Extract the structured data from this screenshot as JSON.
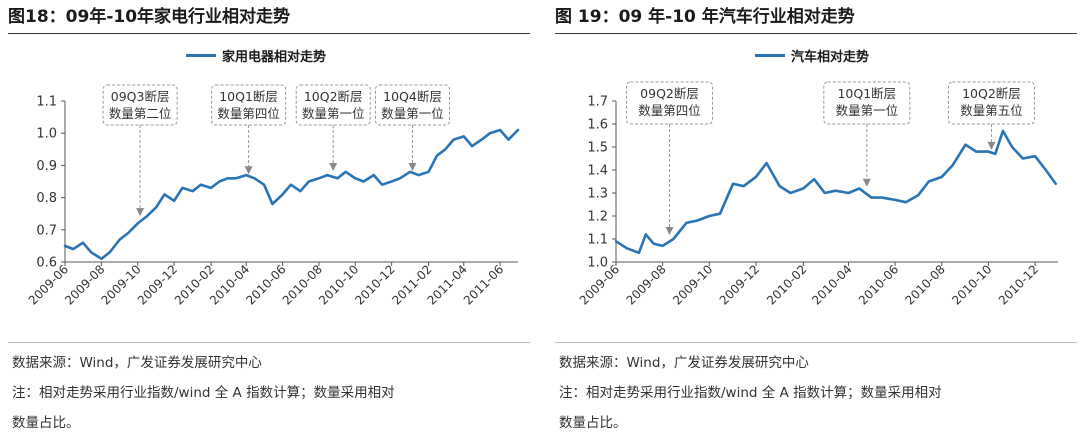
{
  "figures": [
    {
      "title": "图18：09年-10年家电行业相对走势",
      "source": "数据来源：Wind，广发证券发展研究中心",
      "note_line1": "注：相对走势采用行业指数/wind 全 A 指数计算；数量采用相对",
      "note_line2": "数量占比。"
    },
    {
      "title": "图 19：09 年-10 年汽车行业相对走势",
      "source": "数据来源：Wind，广发证券发展研究中心",
      "note_line1": "注：相对走势采用行业指数/wind 全 A 指数计算；数量采用相对",
      "note_line2": "数量占比。"
    }
  ],
  "chart_data": [
    {
      "type": "line",
      "series": [
        {
          "name": "家用电器相对走势",
          "color": "#2874b5",
          "x": [
            "2009-06-01",
            "2009-06-15",
            "2009-07-01",
            "2009-07-15",
            "2009-08-01",
            "2009-08-15",
            "2009-09-01",
            "2009-09-15",
            "2009-10-01",
            "2009-10-15",
            "2009-11-01",
            "2009-11-15",
            "2009-12-01",
            "2009-12-15",
            "2010-01-01",
            "2010-01-15",
            "2010-02-01",
            "2010-02-15",
            "2010-03-01",
            "2010-03-15",
            "2010-04-01",
            "2010-04-15",
            "2010-05-01",
            "2010-05-15",
            "2010-06-01",
            "2010-06-15",
            "2010-07-01",
            "2010-07-15",
            "2010-08-01",
            "2010-08-15",
            "2010-09-01",
            "2010-09-15",
            "2010-10-01",
            "2010-10-15",
            "2010-11-01",
            "2010-11-15",
            "2010-12-01",
            "2010-12-15",
            "2011-01-01",
            "2011-01-15",
            "2011-02-01",
            "2011-02-15",
            "2011-03-01",
            "2011-03-15",
            "2011-04-01",
            "2011-04-15",
            "2011-05-01",
            "2011-05-15",
            "2011-06-01",
            "2011-06-15",
            "2011-07-01"
          ],
          "values": [
            0.65,
            0.64,
            0.66,
            0.63,
            0.61,
            0.63,
            0.67,
            0.69,
            0.72,
            0.74,
            0.77,
            0.81,
            0.79,
            0.83,
            0.82,
            0.84,
            0.83,
            0.85,
            0.86,
            0.86,
            0.87,
            0.86,
            0.84,
            0.78,
            0.81,
            0.84,
            0.82,
            0.85,
            0.86,
            0.87,
            0.86,
            0.88,
            0.86,
            0.85,
            0.87,
            0.84,
            0.85,
            0.86,
            0.88,
            0.87,
            0.88,
            0.93,
            0.95,
            0.98,
            0.99,
            0.96,
            0.98,
            1.0,
            1.01,
            0.98,
            1.01
          ]
        }
      ],
      "ylim": [
        0.6,
        1.1
      ],
      "yticks": [
        0.6,
        0.7,
        0.8,
        0.9,
        1.0,
        1.1
      ],
      "ytick_labels": [
        "0.6",
        "0.7",
        "0.8",
        "0.9",
        "1.0",
        "1.1"
      ],
      "xticks": [
        "2009-06",
        "2009-08",
        "2009-10",
        "2009-12",
        "2010-02",
        "2010-04",
        "2010-06",
        "2010-08",
        "2010-10",
        "2010-12",
        "2011-02",
        "2011-04",
        "2011-06"
      ],
      "xlim": [
        "2009-06-01",
        "2011-07-01"
      ],
      "annotations": [
        {
          "line1": "09Q3断层",
          "line2": "数量第二位",
          "x": "2009-10-05",
          "y": 0.73
        },
        {
          "line1": "10Q1断层",
          "line2": "数量第四位",
          "x": "2010-04-05",
          "y": 0.86
        },
        {
          "line1": "10Q2断层",
          "line2": "数量第一位",
          "x": "2010-08-25",
          "y": 0.87
        },
        {
          "line1": "10Q4断层",
          "line2": "数量第一位",
          "x": "2011-01-05",
          "y": 0.87
        }
      ],
      "legend": "top-center",
      "grid": false
    },
    {
      "type": "line",
      "series": [
        {
          "name": "汽车相对走势",
          "color": "#2874b5",
          "x": [
            "2009-06-01",
            "2009-06-15",
            "2009-07-01",
            "2009-07-10",
            "2009-07-20",
            "2009-08-01",
            "2009-08-15",
            "2009-09-01",
            "2009-09-15",
            "2009-10-01",
            "2009-10-15",
            "2009-11-01",
            "2009-11-15",
            "2009-12-01",
            "2009-12-15",
            "2010-01-01",
            "2010-01-15",
            "2010-02-01",
            "2010-02-15",
            "2010-03-01",
            "2010-03-15",
            "2010-04-01",
            "2010-04-15",
            "2010-05-01",
            "2010-05-15",
            "2010-06-01",
            "2010-06-15",
            "2010-07-01",
            "2010-07-15",
            "2010-08-01",
            "2010-08-15",
            "2010-09-01",
            "2010-09-15",
            "2010-10-01",
            "2010-10-10",
            "2010-10-20",
            "2010-11-01",
            "2010-11-15",
            "2010-12-01",
            "2010-12-15",
            "2010-12-28"
          ],
          "values": [
            1.09,
            1.06,
            1.04,
            1.12,
            1.08,
            1.07,
            1.1,
            1.17,
            1.18,
            1.2,
            1.21,
            1.34,
            1.33,
            1.37,
            1.43,
            1.33,
            1.3,
            1.32,
            1.36,
            1.3,
            1.31,
            1.3,
            1.32,
            1.28,
            1.28,
            1.27,
            1.26,
            1.29,
            1.35,
            1.37,
            1.42,
            1.51,
            1.48,
            1.48,
            1.47,
            1.57,
            1.5,
            1.45,
            1.46,
            1.4,
            1.34
          ]
        }
      ],
      "ylim": [
        1.0,
        1.7
      ],
      "yticks": [
        1.0,
        1.1,
        1.2,
        1.3,
        1.4,
        1.5,
        1.6,
        1.7
      ],
      "ytick_labels": [
        "1.0",
        "1.1",
        "1.2",
        "1.3",
        "1.4",
        "1.5",
        "1.6",
        "1.7"
      ],
      "xticks": [
        "2009-06",
        "2009-08",
        "2009-10",
        "2009-12",
        "2010-02",
        "2010-04",
        "2010-06",
        "2010-08",
        "2010-10",
        "2010-12"
      ],
      "xlim": [
        "2009-06-01",
        "2010-12-31"
      ],
      "annotations": [
        {
          "line1": "09Q2断层",
          "line2": "数量第四位",
          "x": "2009-08-10",
          "y": 1.1
        },
        {
          "line1": "10Q1断层",
          "line2": "数量第一位",
          "x": "2010-04-25",
          "y": 1.31
        },
        {
          "line1": "10Q2断层",
          "line2": "数量第五位",
          "x": "2010-10-05",
          "y": 1.47
        }
      ],
      "legend": "top-center",
      "grid": false
    }
  ]
}
